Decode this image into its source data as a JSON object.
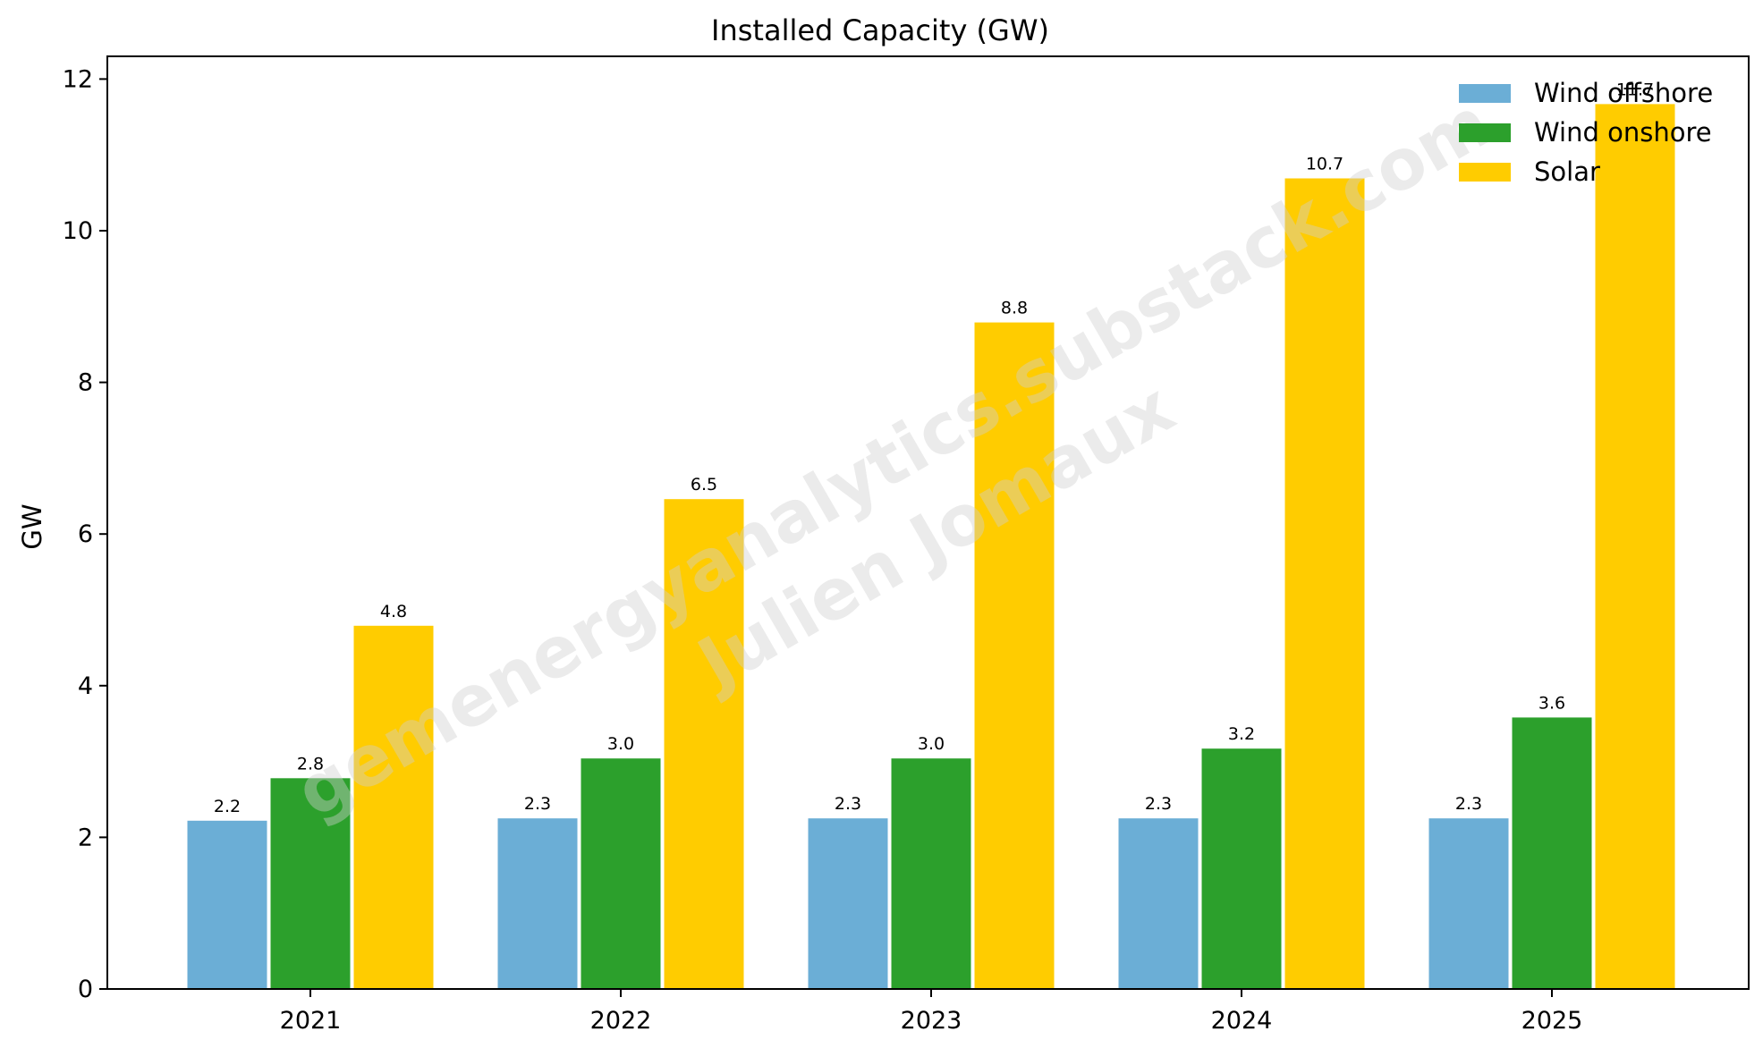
{
  "chart_data": {
    "type": "bar",
    "title": "Installed Capacity (GW)",
    "xlabel": "",
    "ylabel": "GW",
    "ylim": [
      0,
      12.3
    ],
    "yticks": [
      0,
      2,
      4,
      6,
      8,
      10,
      12
    ],
    "categories": [
      "2021",
      "2022",
      "2023",
      "2024",
      "2025"
    ],
    "series": [
      {
        "name": "Wind offshore",
        "color": "#6baed6",
        "values": [
          2.22,
          2.25,
          2.25,
          2.25,
          2.25
        ],
        "labels": [
          "2.2",
          "2.3",
          "2.3",
          "2.3",
          "2.3"
        ]
      },
      {
        "name": "Wind onshore",
        "color": "#2ca02c",
        "values": [
          2.78,
          3.04,
          3.04,
          3.17,
          3.58
        ],
        "labels": [
          "2.8",
          "3.0",
          "3.0",
          "3.2",
          "3.6"
        ]
      },
      {
        "name": "Solar",
        "color": "#ffcc00",
        "values": [
          4.79,
          6.46,
          8.79,
          10.69,
          11.67
        ],
        "labels": [
          "4.8",
          "6.5",
          "8.8",
          "10.7",
          "11.7"
        ]
      }
    ],
    "legend_position": "top-right",
    "grid": false
  },
  "watermark": {
    "line1": "gemenergyanalytics.substack.com",
    "line2": "Julien Jomaux"
  }
}
